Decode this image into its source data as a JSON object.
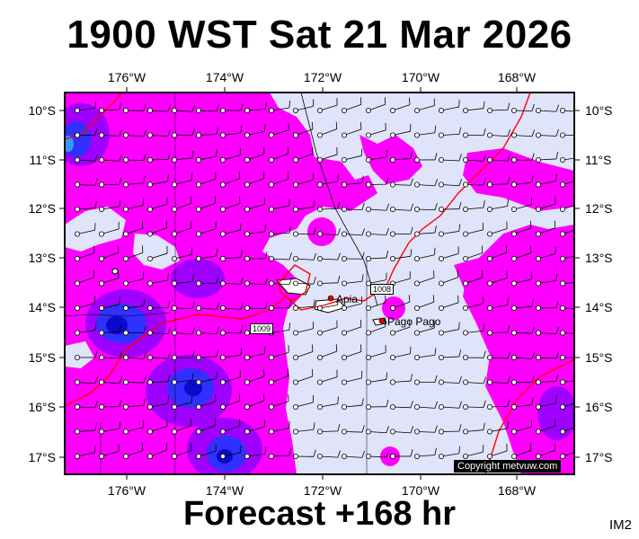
{
  "title": "1900 WST Sat 21 Mar 2026",
  "footer": "Forecast +168 hr",
  "corner_label": "IM2",
  "copyright": "Copyright metvuw.com",
  "axes": {
    "top": [
      "176°W",
      "174°W",
      "172°W",
      "170°W",
      "168°W"
    ],
    "bottom": [
      "176°W",
      "174°W",
      "172°W",
      "170°W",
      "168°W"
    ],
    "left": [
      "10°S",
      "11°S",
      "12°S",
      "13°S",
      "14°S",
      "15°S",
      "16°S",
      "17°S"
    ],
    "right": [
      "10°S",
      "11°S",
      "12°S",
      "13°S",
      "14°S",
      "15°S",
      "16°S",
      "17°S"
    ]
  },
  "places": [
    {
      "name": "Apia",
      "color": "#e00000"
    },
    {
      "name": "Pago Pago",
      "color": "#e00000"
    }
  ],
  "isobars": [
    {
      "label": "1008",
      "color": "#ff0000"
    },
    {
      "label": "1009",
      "color": "#ff0000"
    }
  ],
  "colors": {
    "background_light": "#e0e4fa",
    "rain_magenta": "#ff00ff",
    "rain_purple": "#a000ff",
    "rain_blue": "#3030ff",
    "rain_deep_blue": "#0a0acc",
    "isobar": "#ff0000",
    "gridline": "#000000"
  }
}
